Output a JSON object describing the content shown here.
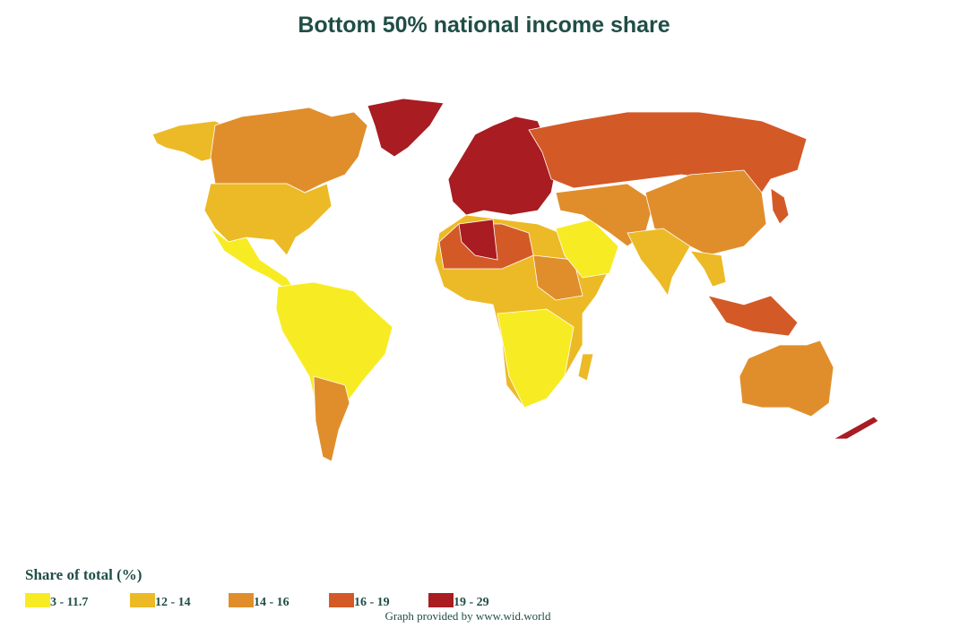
{
  "title": "Bottom 50% national income share",
  "legend": {
    "title": "Share of total (%)",
    "items": [
      {
        "label": "3 - 11.7",
        "color": "#f7ec24"
      },
      {
        "label": "12 - 14",
        "color": "#ecba26"
      },
      {
        "label": "14 - 16",
        "color": "#e08e2c"
      },
      {
        "label": "16 - 19",
        "color": "#d35a27"
      },
      {
        "label": "19 - 29",
        "color": "#a81c22"
      }
    ]
  },
  "credit": "Graph provided by www.wid.world"
}
